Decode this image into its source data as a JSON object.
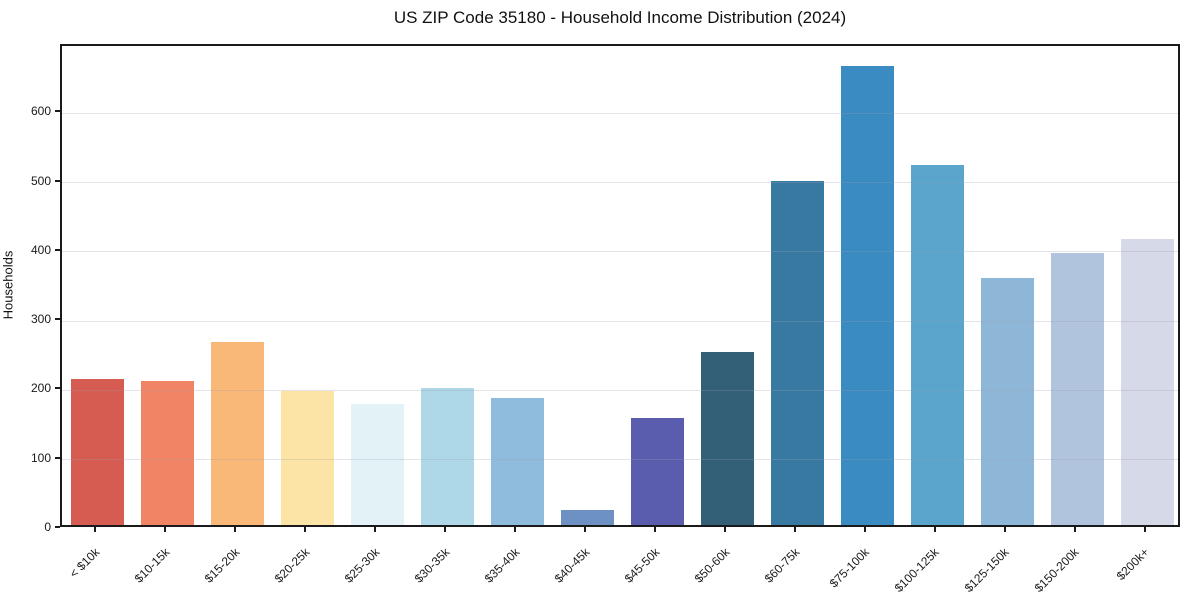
{
  "title": "US ZIP Code 35180 - Household Income Distribution (2024)",
  "chart_data": {
    "type": "bar",
    "title": "US ZIP Code 35180 - Household Income Distribution (2024)",
    "xlabel": "",
    "ylabel": "Households",
    "categories": [
      "< $10k",
      "$10-15k",
      "$15-20k",
      "$20-25k",
      "$25-30k",
      "$30-35k",
      "$35-40k",
      "$40-45k",
      "$45-50k",
      "$50-60k",
      "$60-75k",
      "$75-100k",
      "$100-125k",
      "$125-150k",
      "$150-200k",
      "$200k+"
    ],
    "values": [
      210,
      208,
      264,
      193,
      175,
      198,
      183,
      21,
      154,
      250,
      496,
      662,
      519,
      357,
      392,
      413
    ],
    "bar_colors": [
      "#d65c52",
      "#f08465",
      "#f9b877",
      "#fce3a6",
      "#e3f2f7",
      "#aed8e8",
      "#8fbcdc",
      "#6c91c2",
      "#5a5cae",
      "#336076",
      "#3879a2",
      "#3a8bc2",
      "#5aa5cb",
      "#8eb7d7",
      "#b1c4dd",
      "#d6d9e8"
    ],
    "yticks": [
      0,
      100,
      200,
      300,
      400,
      500,
      600
    ],
    "ylim": [
      0,
      697
    ],
    "grid": "horizontal",
    "legend": "none",
    "background_color": "#ffffff",
    "axis_color": "#1a1a1a",
    "grid_color": "#e7e7ec"
  }
}
